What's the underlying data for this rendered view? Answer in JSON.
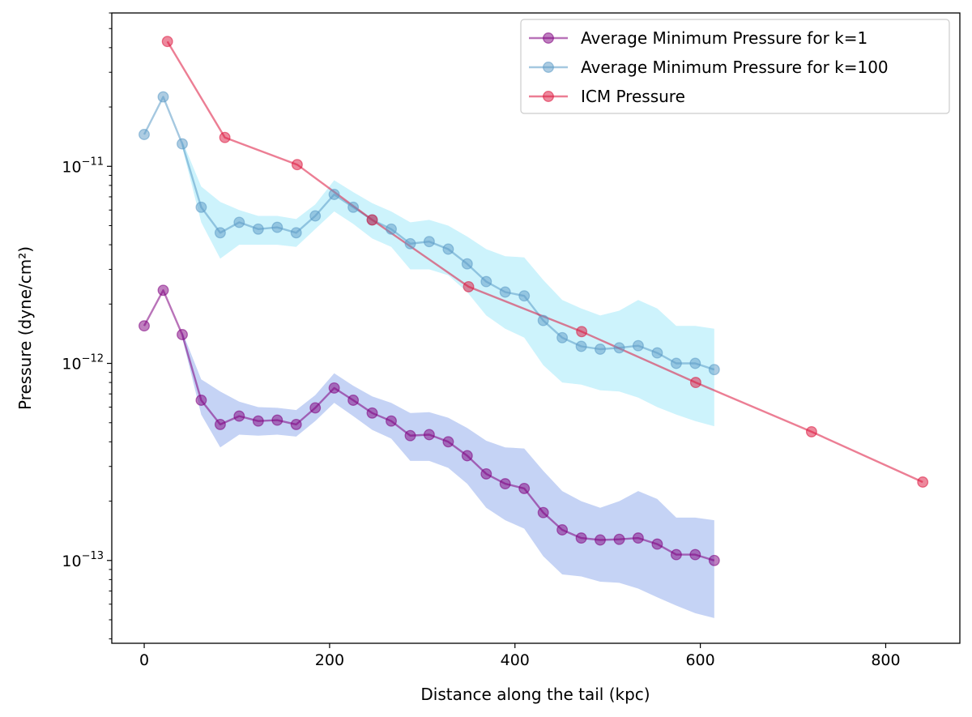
{
  "chart_data": {
    "type": "line",
    "title": "",
    "xlabel": "Distance along the tail (kpc)",
    "ylabel": "Pressure (dyne/cm²)",
    "yscale": "log",
    "xlim": [
      -35,
      880
    ],
    "ylim": [
      3.8e-14,
      6e-11
    ],
    "x_ticks": [
      {
        "value": 0,
        "label": "0"
      },
      {
        "value": 200,
        "label": "200"
      },
      {
        "value": 400,
        "label": "400"
      },
      {
        "value": 600,
        "label": "600"
      },
      {
        "value": 800,
        "label": "800"
      }
    ],
    "y_ticks": [
      {
        "value": 1e-11,
        "base": "10",
        "exp": "−11"
      },
      {
        "value": 1e-12,
        "base": "10",
        "exp": "−12"
      },
      {
        "value": 1e-13,
        "base": "10",
        "exp": "−13"
      }
    ],
    "legend_position": "upper-right",
    "series": [
      {
        "name": "Average Minimum Pressure for k=1",
        "color": "#800080",
        "band_color": "#c5d3f5",
        "x": [
          0,
          20.5,
          41,
          61.5,
          82,
          102.5,
          123,
          143.5,
          164,
          184.5,
          205,
          225.5,
          246,
          266.5,
          287,
          307.5,
          328,
          348.5,
          369,
          389.5,
          410,
          430.5,
          451,
          471.5,
          492,
          512.5,
          533,
          553.5,
          574,
          594.5,
          615
        ],
        "values": [
          1.55e-12,
          2.35e-12,
          1.4e-12,
          6.5e-13,
          4.9e-13,
          5.4e-13,
          5.1e-13,
          5.15e-13,
          4.9e-13,
          5.95e-13,
          7.5e-13,
          6.5e-13,
          5.6e-13,
          5.1e-13,
          4.3e-13,
          4.35e-13,
          4e-13,
          3.4e-13,
          2.75e-13,
          2.45e-13,
          2.32e-13,
          1.75e-13,
          1.43e-13,
          1.3e-13,
          1.27e-13,
          1.28e-13,
          1.3e-13,
          1.21e-13,
          1.07e-13,
          1.07e-13,
          1e-13
        ],
        "band_upper": [
          null,
          null,
          1.45e-12,
          8.3e-13,
          7.2e-13,
          6.4e-13,
          6e-13,
          5.95e-13,
          5.8e-13,
          6.9e-13,
          8.9e-13,
          7.7e-13,
          6.8e-13,
          6.3e-13,
          5.6e-13,
          5.65e-13,
          5.3e-13,
          4.7e-13,
          4.05e-13,
          3.75e-13,
          3.7e-13,
          2.85e-13,
          2.25e-13,
          2e-13,
          1.85e-13,
          2e-13,
          2.25e-13,
          2.05e-13,
          1.65e-13,
          1.65e-13,
          1.6e-13
        ],
        "band_lower": [
          null,
          null,
          1.35e-12,
          5.5e-13,
          3.75e-13,
          4.35e-13,
          4.3e-13,
          4.35e-13,
          4.25e-13,
          5.1e-13,
          6.3e-13,
          5.4e-13,
          4.6e-13,
          4.15e-13,
          3.2e-13,
          3.2e-13,
          2.95e-13,
          2.45e-13,
          1.85e-13,
          1.6e-13,
          1.45e-13,
          1.05e-13,
          8.5e-14,
          8.3e-14,
          7.8e-14,
          7.7e-14,
          7.2e-14,
          6.5e-14,
          5.9e-14,
          5.4e-14,
          5.1e-14
        ]
      },
      {
        "name": "Average Minimum Pressure for k=100",
        "color": "#5b9ac6",
        "band_color": "#cdf3fc",
        "x": [
          0,
          20.5,
          41,
          61.5,
          82,
          102.5,
          123,
          143.5,
          164,
          184.5,
          205,
          225.5,
          246,
          266.5,
          287,
          307.5,
          328,
          348.5,
          369,
          389.5,
          410,
          430.5,
          451,
          471.5,
          492,
          512.5,
          533,
          553.5,
          574,
          594.5,
          615
        ],
        "values": [
          1.45e-11,
          2.25e-11,
          1.3e-11,
          6.2e-12,
          4.6e-12,
          5.2e-12,
          4.8e-12,
          4.9e-12,
          4.6e-12,
          5.6e-12,
          7.2e-12,
          6.2e-12,
          5.35e-12,
          4.8e-12,
          4.05e-12,
          4.15e-12,
          3.8e-12,
          3.2e-12,
          2.6e-12,
          2.3e-12,
          2.2e-12,
          1.65e-12,
          1.35e-12,
          1.22e-12,
          1.18e-12,
          1.2e-12,
          1.23e-12,
          1.13e-12,
          1e-12,
          1e-12,
          9.3e-13
        ],
        "band_upper": [
          null,
          null,
          1.35e-11,
          7.9e-12,
          6.6e-12,
          6e-12,
          5.6e-12,
          5.6e-12,
          5.4e-12,
          6.4e-12,
          8.5e-12,
          7.4e-12,
          6.5e-12,
          5.9e-12,
          5.2e-12,
          5.35e-12,
          5e-12,
          4.4e-12,
          3.8e-12,
          3.5e-12,
          3.45e-12,
          2.65e-12,
          2.1e-12,
          1.9e-12,
          1.75e-12,
          1.85e-12,
          2.1e-12,
          1.9e-12,
          1.55e-12,
          1.55e-12,
          1.5e-12
        ],
        "band_lower": [
          null,
          null,
          1.25e-11,
          5.2e-12,
          3.4e-12,
          4e-12,
          4e-12,
          4e-12,
          3.9e-12,
          4.8e-12,
          5.9e-12,
          5.1e-12,
          4.3e-12,
          3.9e-12,
          3e-12,
          3e-12,
          2.8e-12,
          2.3e-12,
          1.75e-12,
          1.5e-12,
          1.35e-12,
          9.8e-13,
          8e-13,
          7.8e-13,
          7.3e-13,
          7.2e-13,
          6.7e-13,
          6e-13,
          5.5e-13,
          5.1e-13,
          4.8e-13
        ]
      },
      {
        "name": "ICM Pressure",
        "color": "#dc143c",
        "x": [
          25,
          87,
          165,
          246,
          350,
          472,
          595,
          720,
          840
        ],
        "values": [
          4.3e-11,
          1.4e-11,
          1.02e-11,
          5.35e-12,
          2.45e-12,
          1.45e-12,
          8e-13,
          4.5e-13,
          2.5e-13
        ]
      }
    ]
  }
}
